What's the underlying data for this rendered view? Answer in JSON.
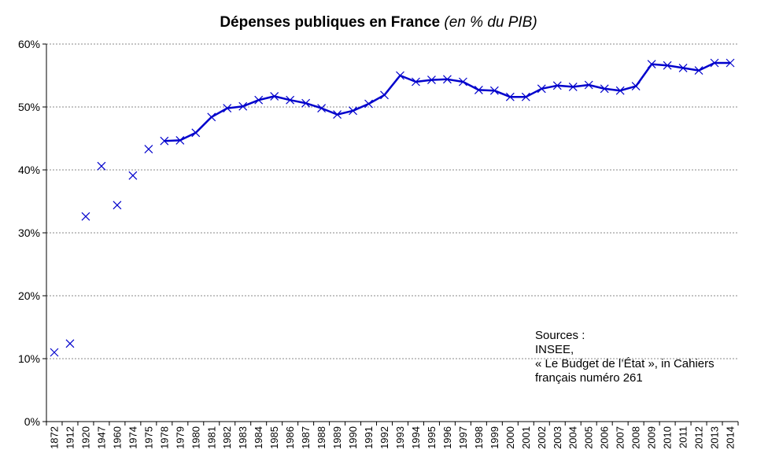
{
  "chart_data": {
    "type": "line",
    "title": "Dépenses publiques en France",
    "subtitle": "(en % du PIB)",
    "xlabel": "",
    "ylabel": "",
    "ylim": [
      0,
      60
    ],
    "y_ticks": [
      "0%",
      "10%",
      "20%",
      "30%",
      "40%",
      "50%",
      "60%"
    ],
    "grid": "horizontal dashed",
    "legend": "none",
    "categories": [
      "1872",
      "1912",
      "1920",
      "1947",
      "1960",
      "1974",
      "1975",
      "1978",
      "1979",
      "1980",
      "1981",
      "1982",
      "1983",
      "1984",
      "1985",
      "1986",
      "1987",
      "1988",
      "1989",
      "1990",
      "1991",
      "1992",
      "1993",
      "1994",
      "1995",
      "1996",
      "1997",
      "1998",
      "1999",
      "2000",
      "2001",
      "2002",
      "2003",
      "2004",
      "2005",
      "2006",
      "2007",
      "2008",
      "2009",
      "2010",
      "2011",
      "2012",
      "2013",
      "2014"
    ],
    "series": [
      {
        "color": "#0000CC",
        "values": [
          11.0,
          12.4,
          32.6,
          40.6,
          34.4,
          39.1,
          43.3,
          44.6,
          44.7,
          45.9,
          48.4,
          49.8,
          50.1,
          51.1,
          51.7,
          51.1,
          50.6,
          49.8,
          48.8,
          49.4,
          50.5,
          51.9,
          55.0,
          54.0,
          54.3,
          54.4,
          54.0,
          52.7,
          52.6,
          51.6,
          51.6,
          52.9,
          53.4,
          53.2,
          53.5,
          52.9,
          52.6,
          53.3,
          56.8,
          56.6,
          56.2,
          55.8,
          57.0,
          57.0
        ],
        "line_from_index": 7
      }
    ],
    "annotation": [
      "Sources :",
      "INSEE,",
      "« Le Budget de l’État », in Cahiers",
      "français numéro 261"
    ]
  }
}
